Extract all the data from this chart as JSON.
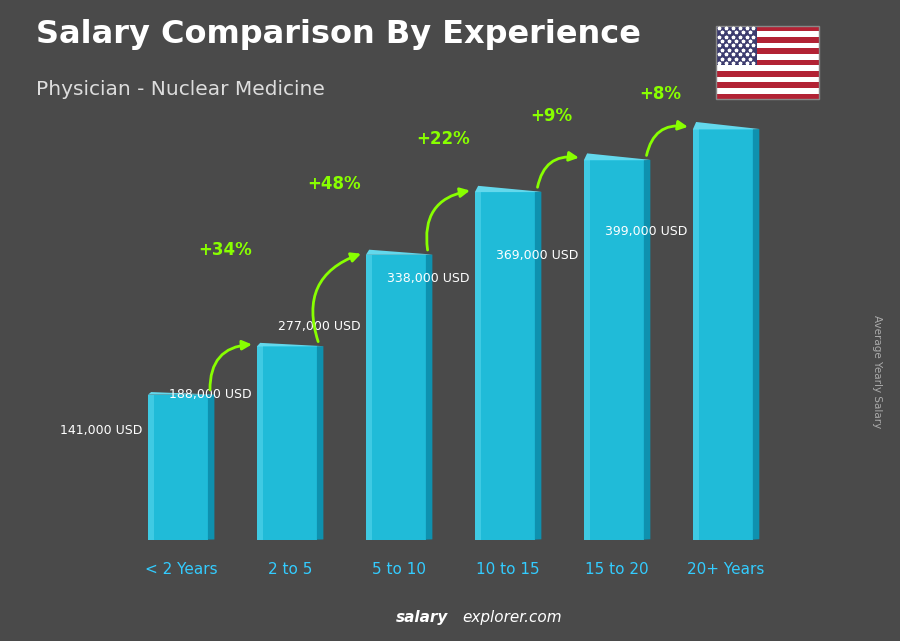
{
  "title": "Salary Comparison By Experience",
  "subtitle": "Physician - Nuclear Medicine",
  "categories": [
    "< 2 Years",
    "2 to 5",
    "5 to 10",
    "10 to 15",
    "15 to 20",
    "20+ Years"
  ],
  "values": [
    141000,
    188000,
    277000,
    338000,
    369000,
    399000
  ],
  "value_labels": [
    "141,000 USD",
    "188,000 USD",
    "277,000 USD",
    "338,000 USD",
    "369,000 USD",
    "399,000 USD"
  ],
  "pct_changes": [
    "+34%",
    "+48%",
    "+22%",
    "+9%",
    "+8%"
  ],
  "bar_color_main": "#1CC8E8",
  "bar_color_dark": "#0899BB",
  "bar_color_light": "#55DDFF",
  "bar_color_top": "#66E8FF",
  "background_color": "#4a4a4a",
  "title_color": "#ffffff",
  "subtitle_color": "#dddddd",
  "salary_label_color": "#ffffff",
  "pct_color": "#88FF00",
  "xlabel_color": "#33CCFF",
  "watermark_salary": "salary",
  "watermark_explorer": "explorer.com",
  "ylabel_text": "Average Yearly Salary",
  "ylabel_color": "#aaaaaa",
  "ymax": 450000,
  "bar_bottom": 0,
  "bar_width": 0.55
}
